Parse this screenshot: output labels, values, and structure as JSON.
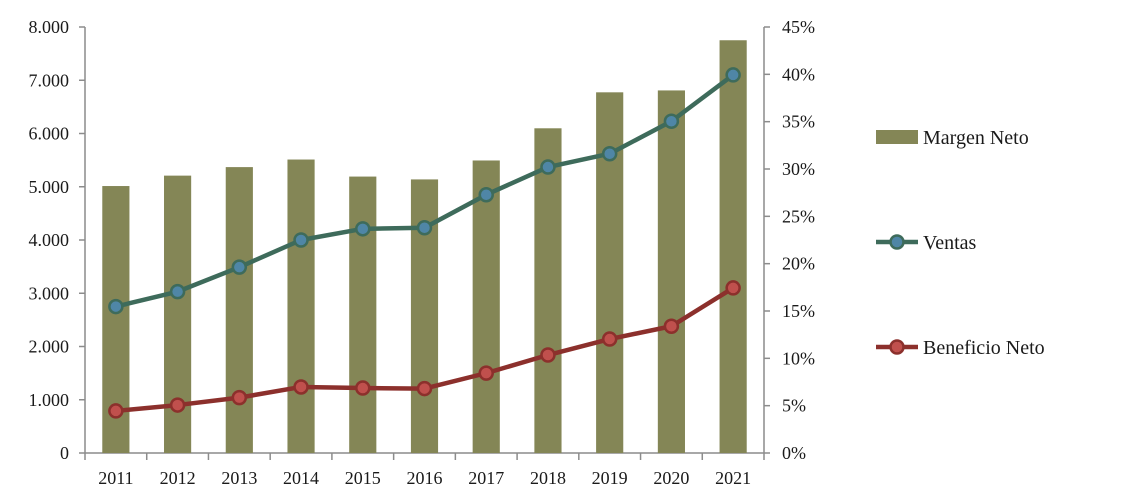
{
  "chart_data": {
    "type": "bar+line",
    "title": "",
    "categories": [
      "2011",
      "2012",
      "2013",
      "2014",
      "2015",
      "2016",
      "2017",
      "2018",
      "2019",
      "2020",
      "2021"
    ],
    "left_axis": {
      "ylim": [
        0,
        8000
      ],
      "ticks": [
        0,
        1000,
        2000,
        3000,
        4000,
        5000,
        6000,
        7000,
        8000
      ],
      "tick_labels": [
        "0",
        "1.000",
        "2.000",
        "3.000",
        "4.000",
        "5.000",
        "6.000",
        "7.000",
        "8.000"
      ]
    },
    "right_axis": {
      "ylim": [
        0,
        45
      ],
      "ticks": [
        0,
        5,
        10,
        15,
        20,
        25,
        30,
        35,
        40,
        45
      ],
      "tick_labels": [
        "0%",
        "5%",
        "10%",
        "15%",
        "20%",
        "25%",
        "30%",
        "35%",
        "40%",
        "45%"
      ]
    },
    "series": [
      {
        "name": "Margen Neto",
        "kind": "bar",
        "axis": "right",
        "color": "#848656",
        "values": [
          28.2,
          29.3,
          30.2,
          31.0,
          29.2,
          28.9,
          30.9,
          34.3,
          38.1,
          38.3,
          43.6
        ]
      },
      {
        "name": "Ventas",
        "kind": "line",
        "axis": "left",
        "color": "#3e6b5b",
        "marker_fill": "#4f86a6",
        "values": [
          2750,
          3030,
          3490,
          4000,
          4210,
          4230,
          4850,
          5370,
          5620,
          6230,
          7100
        ]
      },
      {
        "name": "Beneficio Neto",
        "kind": "line",
        "axis": "left",
        "color": "#8c302c",
        "marker_fill": "#c0504d",
        "values": [
          790,
          900,
          1040,
          1240,
          1220,
          1210,
          1500,
          1840,
          2140,
          2380,
          3100
        ]
      }
    ],
    "legend": {
      "placement": "right",
      "order": [
        "Margen Neto",
        "Ventas",
        "Beneficio Neto"
      ]
    },
    "grid": false
  }
}
